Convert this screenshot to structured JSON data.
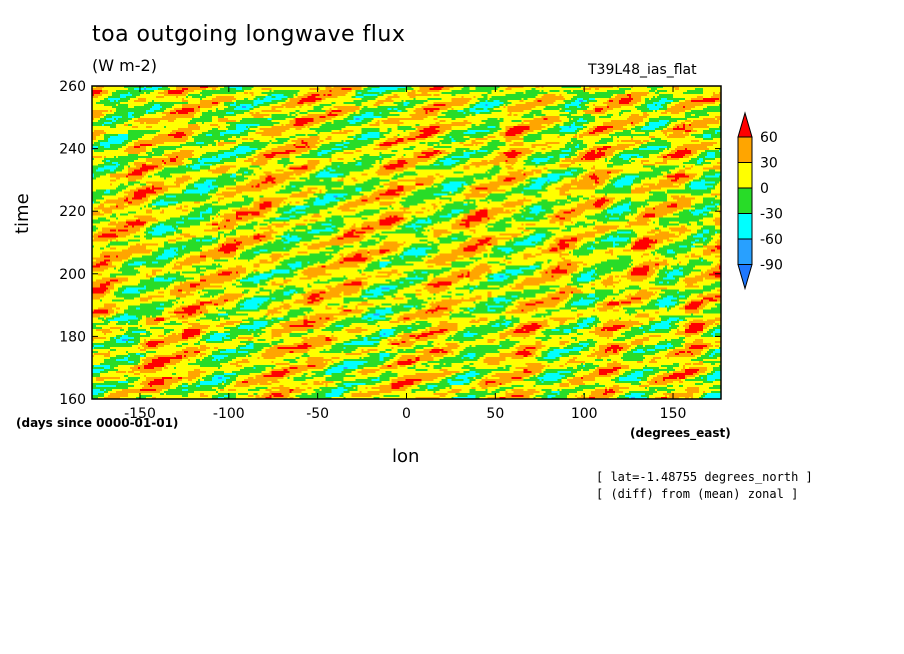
{
  "chart_data": {
    "type": "heatmap",
    "title": "toa outgoing longwave flux",
    "units": "(W m-2)",
    "run_name": "T39L48_ias_flat",
    "xlabel": "lon",
    "ylabel": "time",
    "x_units": "(degrees_east)",
    "y_units": "(days since 0000-01-01)",
    "xlim": [
      -177,
      177
    ],
    "ylim": [
      160,
      260
    ],
    "x_ticks": [
      -150,
      -100,
      -50,
      0,
      50,
      100,
      150
    ],
    "y_ticks": [
      160,
      180,
      200,
      220,
      240,
      260
    ],
    "colorbar": {
      "levels": [
        -90,
        -60,
        -30,
        0,
        30,
        60
      ],
      "colors": [
        "#1e78ff",
        "#28a0ff",
        "#00ffff",
        "#28dc28",
        "#ffff00",
        "#ffa500",
        "#ff0000"
      ]
    },
    "annotations": [
      "[ lat=-1.48755 degrees_north ]",
      "[ (diff) from (mean) zonal ]"
    ]
  }
}
